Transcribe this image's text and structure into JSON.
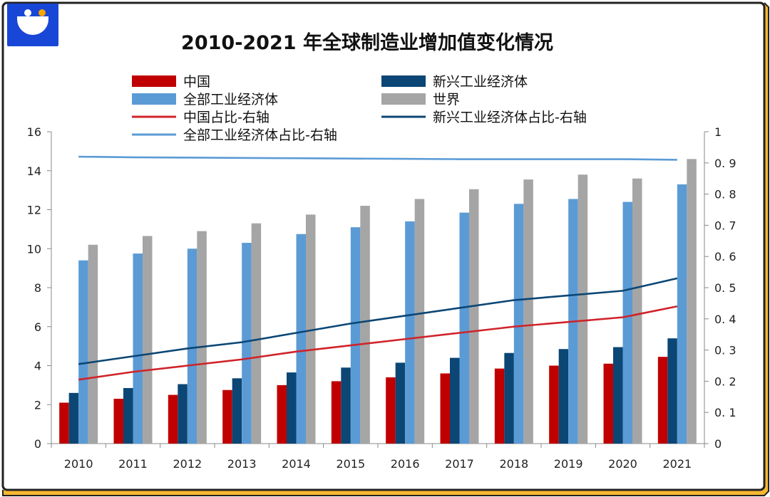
{
  "chart_data": {
    "type": "bar",
    "title": "2010-2021 年全球制造业增加值变化情况",
    "categories": [
      "2010",
      "2011",
      "2012",
      "2013",
      "2014",
      "2015",
      "2016",
      "2017",
      "2018",
      "2019",
      "2020",
      "2021"
    ],
    "series": [
      {
        "name": "中国",
        "axis": "left",
        "color": "#c00000",
        "values": [
          2.1,
          2.3,
          2.5,
          2.75,
          3.0,
          3.2,
          3.4,
          3.6,
          3.85,
          4.0,
          4.1,
          4.45
        ]
      },
      {
        "name": "新兴工业经济体",
        "axis": "left",
        "color": "#0b4674",
        "values": [
          2.6,
          2.85,
          3.05,
          3.35,
          3.65,
          3.9,
          4.15,
          4.4,
          4.65,
          4.85,
          4.95,
          5.4
        ]
      },
      {
        "name": "全部工业经济体",
        "axis": "left",
        "color": "#5b9bd5",
        "values": [
          9.4,
          9.75,
          10.0,
          10.3,
          10.75,
          11.1,
          11.4,
          11.85,
          12.3,
          12.55,
          12.4,
          13.3
        ]
      },
      {
        "name": "世界",
        "axis": "left",
        "color": "#a5a5a5",
        "values": [
          10.2,
          10.65,
          10.9,
          11.3,
          11.75,
          12.2,
          12.55,
          13.05,
          13.55,
          13.8,
          13.6,
          14.6
        ]
      }
    ],
    "lines": [
      {
        "name": "中国占比-右轴",
        "axis": "right",
        "color": "#d0232a",
        "values": [
          0.205,
          0.23,
          0.25,
          0.27,
          0.295,
          0.315,
          0.335,
          0.355,
          0.375,
          0.39,
          0.405,
          0.44
        ]
      },
      {
        "name": "新兴工业经济体占比-右轴",
        "axis": "right",
        "color": "#0b4674",
        "values": [
          0.255,
          0.28,
          0.305,
          0.325,
          0.355,
          0.385,
          0.41,
          0.435,
          0.46,
          0.475,
          0.49,
          0.53
        ]
      },
      {
        "name": "全部工业经济体占比-右轴",
        "axis": "right",
        "color": "#5b9bd5",
        "values": [
          0.92,
          0.918,
          0.917,
          0.916,
          0.915,
          0.914,
          0.913,
          0.912,
          0.912,
          0.912,
          0.912,
          0.91
        ]
      }
    ],
    "legend": [
      "中国",
      "新兴工业经济体",
      "全部工业经济体",
      "世界",
      "中国占比-右轴",
      "新兴工业经济体占比-右轴",
      "全部工业经济体占比-右轴"
    ],
    "ylim_left": [
      0,
      16
    ],
    "yticks_left": [
      "0",
      "2",
      "4",
      "6",
      "8",
      "10",
      "12",
      "14",
      "16"
    ],
    "ylim_right": [
      0,
      1
    ],
    "yticks_right": [
      "0",
      "0. 1",
      "0. 2",
      "0. 3",
      "0. 4",
      "0. 5",
      "0. 6",
      "0. 7",
      "0. 8",
      "0. 9",
      "1"
    ],
    "xlabel": "",
    "ylabel": "",
    "grid": false
  }
}
